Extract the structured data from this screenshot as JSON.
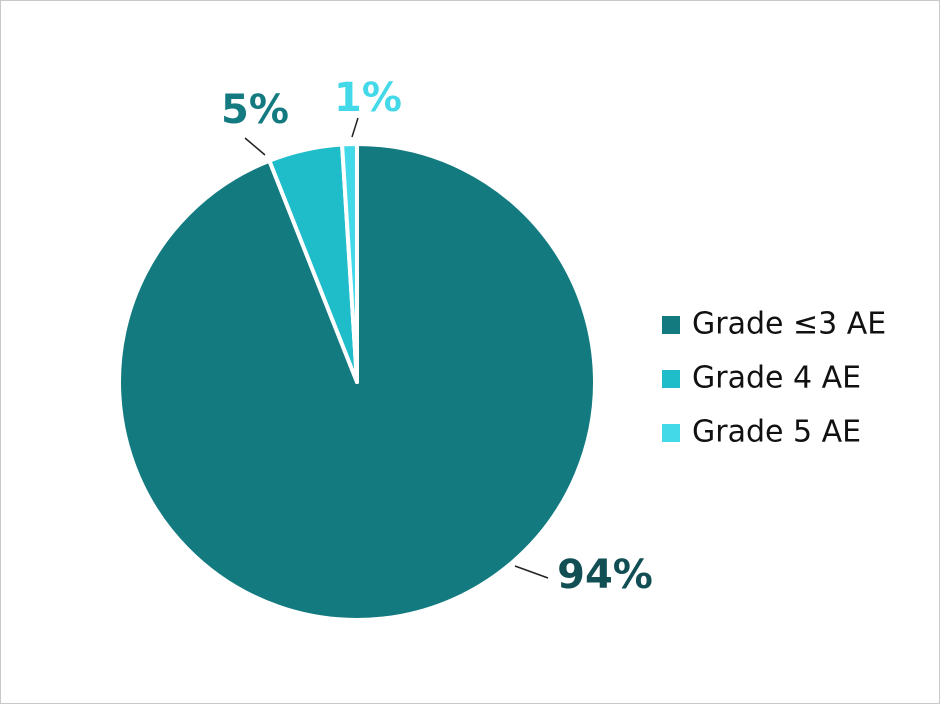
{
  "chart_data": {
    "type": "pie",
    "categories": [
      "Grade ≤3 AE",
      "Grade 4 AE",
      "Grade 5 AE"
    ],
    "values": [
      94,
      5,
      1
    ],
    "value_labels": [
      "94%",
      "5%",
      "1%"
    ],
    "colors": [
      "#137a80",
      "#1fbdca",
      "#44d9e8"
    ],
    "label_colors": [
      "#124f55",
      "#137a80",
      "#44d9e8"
    ],
    "legend": "right"
  }
}
